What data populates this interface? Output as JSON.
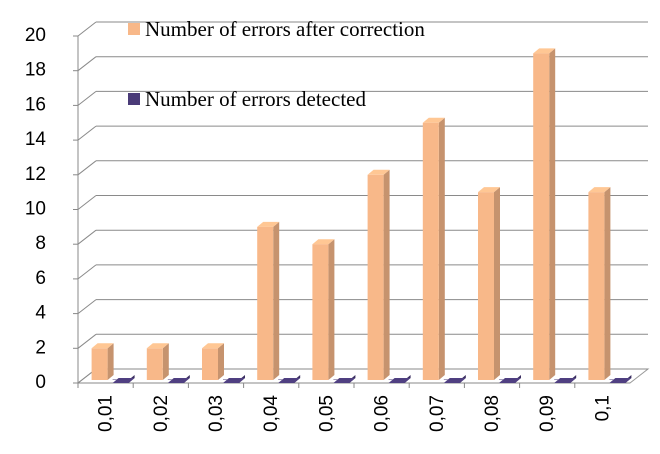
{
  "chart_data": {
    "type": "bar3d",
    "categories": [
      "0,01",
      "0,02",
      "0,03",
      "0,04",
      "0,05",
      "0,06",
      "0,07",
      "0,08",
      "0,09",
      "0,1"
    ],
    "series": [
      {
        "name": "Number of errors after correction",
        "color": "#f8b889",
        "values": [
          2,
          2,
          2,
          9,
          8,
          12,
          15,
          11,
          19,
          11
        ]
      },
      {
        "name": "Number of errors detected",
        "color": "#4a3b78",
        "values": [
          0,
          0,
          0,
          0,
          0,
          0,
          0,
          0,
          0,
          0
        ]
      }
    ],
    "ylim": [
      0,
      20
    ],
    "yticks": [
      0,
      2,
      4,
      6,
      8,
      10,
      12,
      14,
      16,
      18,
      20
    ],
    "grid": true
  }
}
